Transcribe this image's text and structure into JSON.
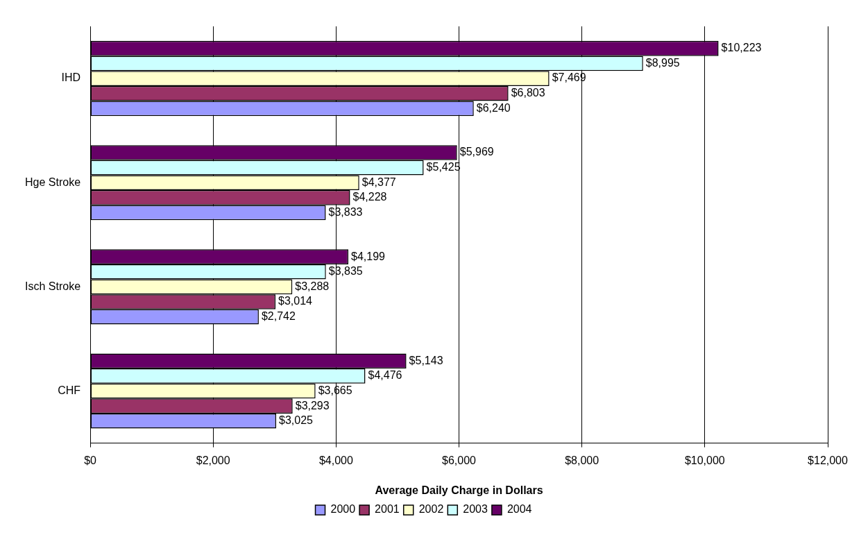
{
  "chart_data": {
    "type": "bar",
    "orientation": "horizontal",
    "xlabel": "Average Daily Charge in Dollars",
    "categories": [
      "IHD",
      "Hge Stroke",
      "Isch Stroke",
      "CHF"
    ],
    "series": [
      {
        "name": "2000",
        "color": "#9999ff",
        "values": [
          6240,
          3833,
          2742,
          3025
        ],
        "value_labels": [
          "$6,240",
          "$3,833",
          "$2,742",
          "$3,025"
        ]
      },
      {
        "name": "2001",
        "color": "#993366",
        "values": [
          6803,
          4228,
          3014,
          3293
        ],
        "value_labels": [
          "$6,803",
          "$4,228",
          "$3,014",
          "$3,293"
        ]
      },
      {
        "name": "2002",
        "color": "#ffffcc",
        "values": [
          7469,
          4377,
          3288,
          3665
        ],
        "value_labels": [
          "$7,469",
          "$4,377",
          "$3,288",
          "$3,665"
        ]
      },
      {
        "name": "2003",
        "color": "#ccffff",
        "values": [
          8995,
          5425,
          3835,
          4476
        ],
        "value_labels": [
          "$8,995",
          "$5,425",
          "$3,835",
          "$4,476"
        ]
      },
      {
        "name": "2004",
        "color": "#660066",
        "values": [
          10223,
          5969,
          4199,
          5143
        ],
        "value_labels": [
          "$10,223",
          "$5,969",
          "$4,199",
          "$5,143"
        ]
      }
    ],
    "xlim": [
      0,
      12000
    ],
    "xticks": [
      {
        "value": 0,
        "label": "$0"
      },
      {
        "value": 2000,
        "label": "$2,000"
      },
      {
        "value": 4000,
        "label": "$4,000"
      },
      {
        "value": 6000,
        "label": "$6,000"
      },
      {
        "value": 8000,
        "label": "$8,000"
      },
      {
        "value": 10000,
        "label": "$10,000"
      },
      {
        "value": 12000,
        "label": "$12,000"
      }
    ],
    "grid": "x",
    "legend": "bottom"
  }
}
